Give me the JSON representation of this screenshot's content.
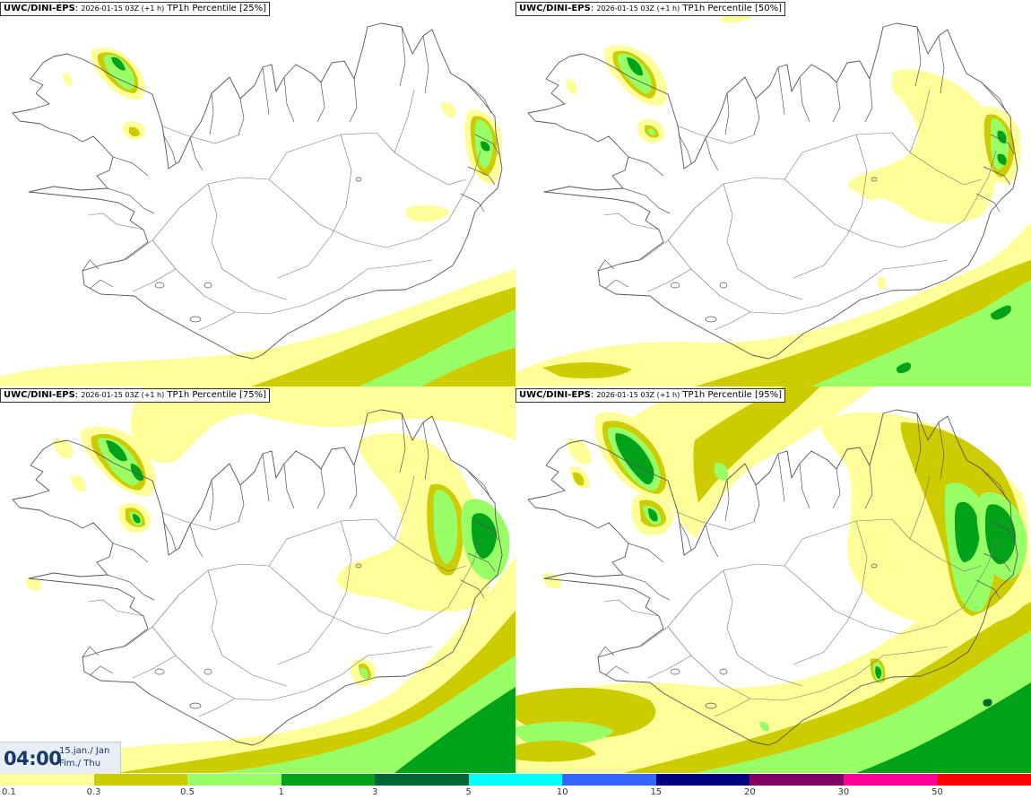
{
  "panels": [
    {
      "model": "UWC/DINI-EPS",
      "run": "2026-01-15 03Z (+1 h)",
      "product": "TP1h Percentile [25%]"
    },
    {
      "model": "UWC/DINI-EPS",
      "run": "2026-01-15 03Z (+1 h)",
      "product": "TP1h Percentile [50%]"
    },
    {
      "model": "UWC/DINI-EPS",
      "run": "2026-01-15 03Z (+1 h)",
      "product": "TP1h Percentile [75%]"
    },
    {
      "model": "UWC/DINI-EPS",
      "run": "2026-01-15 03Z (+1 h)",
      "product": "TP1h Percentile [95%]"
    }
  ],
  "valid_time": {
    "time": "04:00",
    "date_line1": "15.jan./ Jan",
    "date_line2": "Fim./ Thu"
  },
  "legend": {
    "labels": [
      "0.1",
      "0.3",
      "0.5",
      "1",
      "3",
      "5",
      "10",
      "15",
      "20",
      "30",
      "50"
    ],
    "colors": [
      "#ffff99",
      "#cccc00",
      "#99ff66",
      "#00a21a",
      "#006633",
      "#00ffff",
      "#3366ff",
      "#000080",
      "#800066",
      "#ff0099",
      "#ff0000"
    ]
  },
  "map_colors": {
    "light_yellow": "#ffff99",
    "olive": "#cccc00",
    "light_green": "#99ff66",
    "green": "#00a21a",
    "dark_green": "#006633",
    "coastline": "#555555"
  }
}
